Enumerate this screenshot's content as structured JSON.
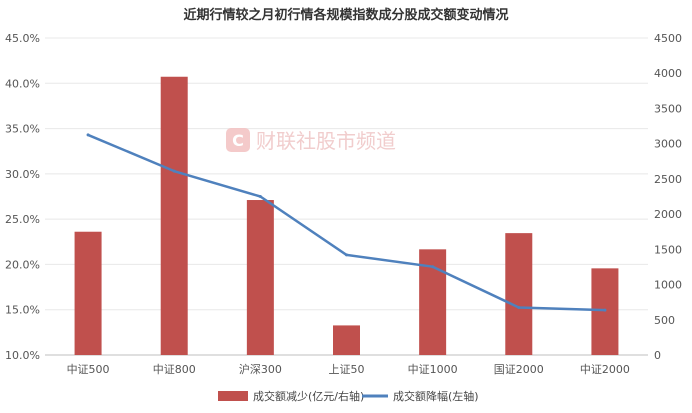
{
  "chart_data": {
    "type": "bar",
    "title": "近期行情较之月初行情各规模指数成分股成交额变动情况",
    "categories": [
      "中证500",
      "中证800",
      "沪深300",
      "上证50",
      "中证1000",
      "国证2000",
      "中证2000"
    ],
    "series": [
      {
        "name": "成交额减少(亿元/右轴)",
        "type": "bar",
        "axis": "right",
        "color": "#c0504d",
        "values": [
          1750,
          3950,
          2200,
          420,
          1500,
          1730,
          1230
        ]
      },
      {
        "name": "成交额降幅(左轴)",
        "type": "line",
        "axis": "left",
        "color": "#4f81bd",
        "values": [
          0.343,
          0.303,
          0.275,
          0.2105,
          0.1975,
          0.1525,
          0.1495
        ]
      }
    ],
    "y_left": {
      "ticks": [
        "45.0%",
        "40.0%",
        "35.0%",
        "30.0%",
        "25.0%",
        "20.0%",
        "15.0%",
        "10.0%"
      ],
      "lim": [
        0.1,
        0.45
      ]
    },
    "y_right": {
      "ticks": [
        "4500",
        "4000",
        "3500",
        "3000",
        "2500",
        "2000",
        "1500",
        "1000",
        "500",
        "0"
      ],
      "lim": [
        0,
        4500
      ]
    },
    "grid": true,
    "legend_position": "bottom"
  },
  "watermark": {
    "logo_letter": "C",
    "text": "财联社股市频道"
  }
}
